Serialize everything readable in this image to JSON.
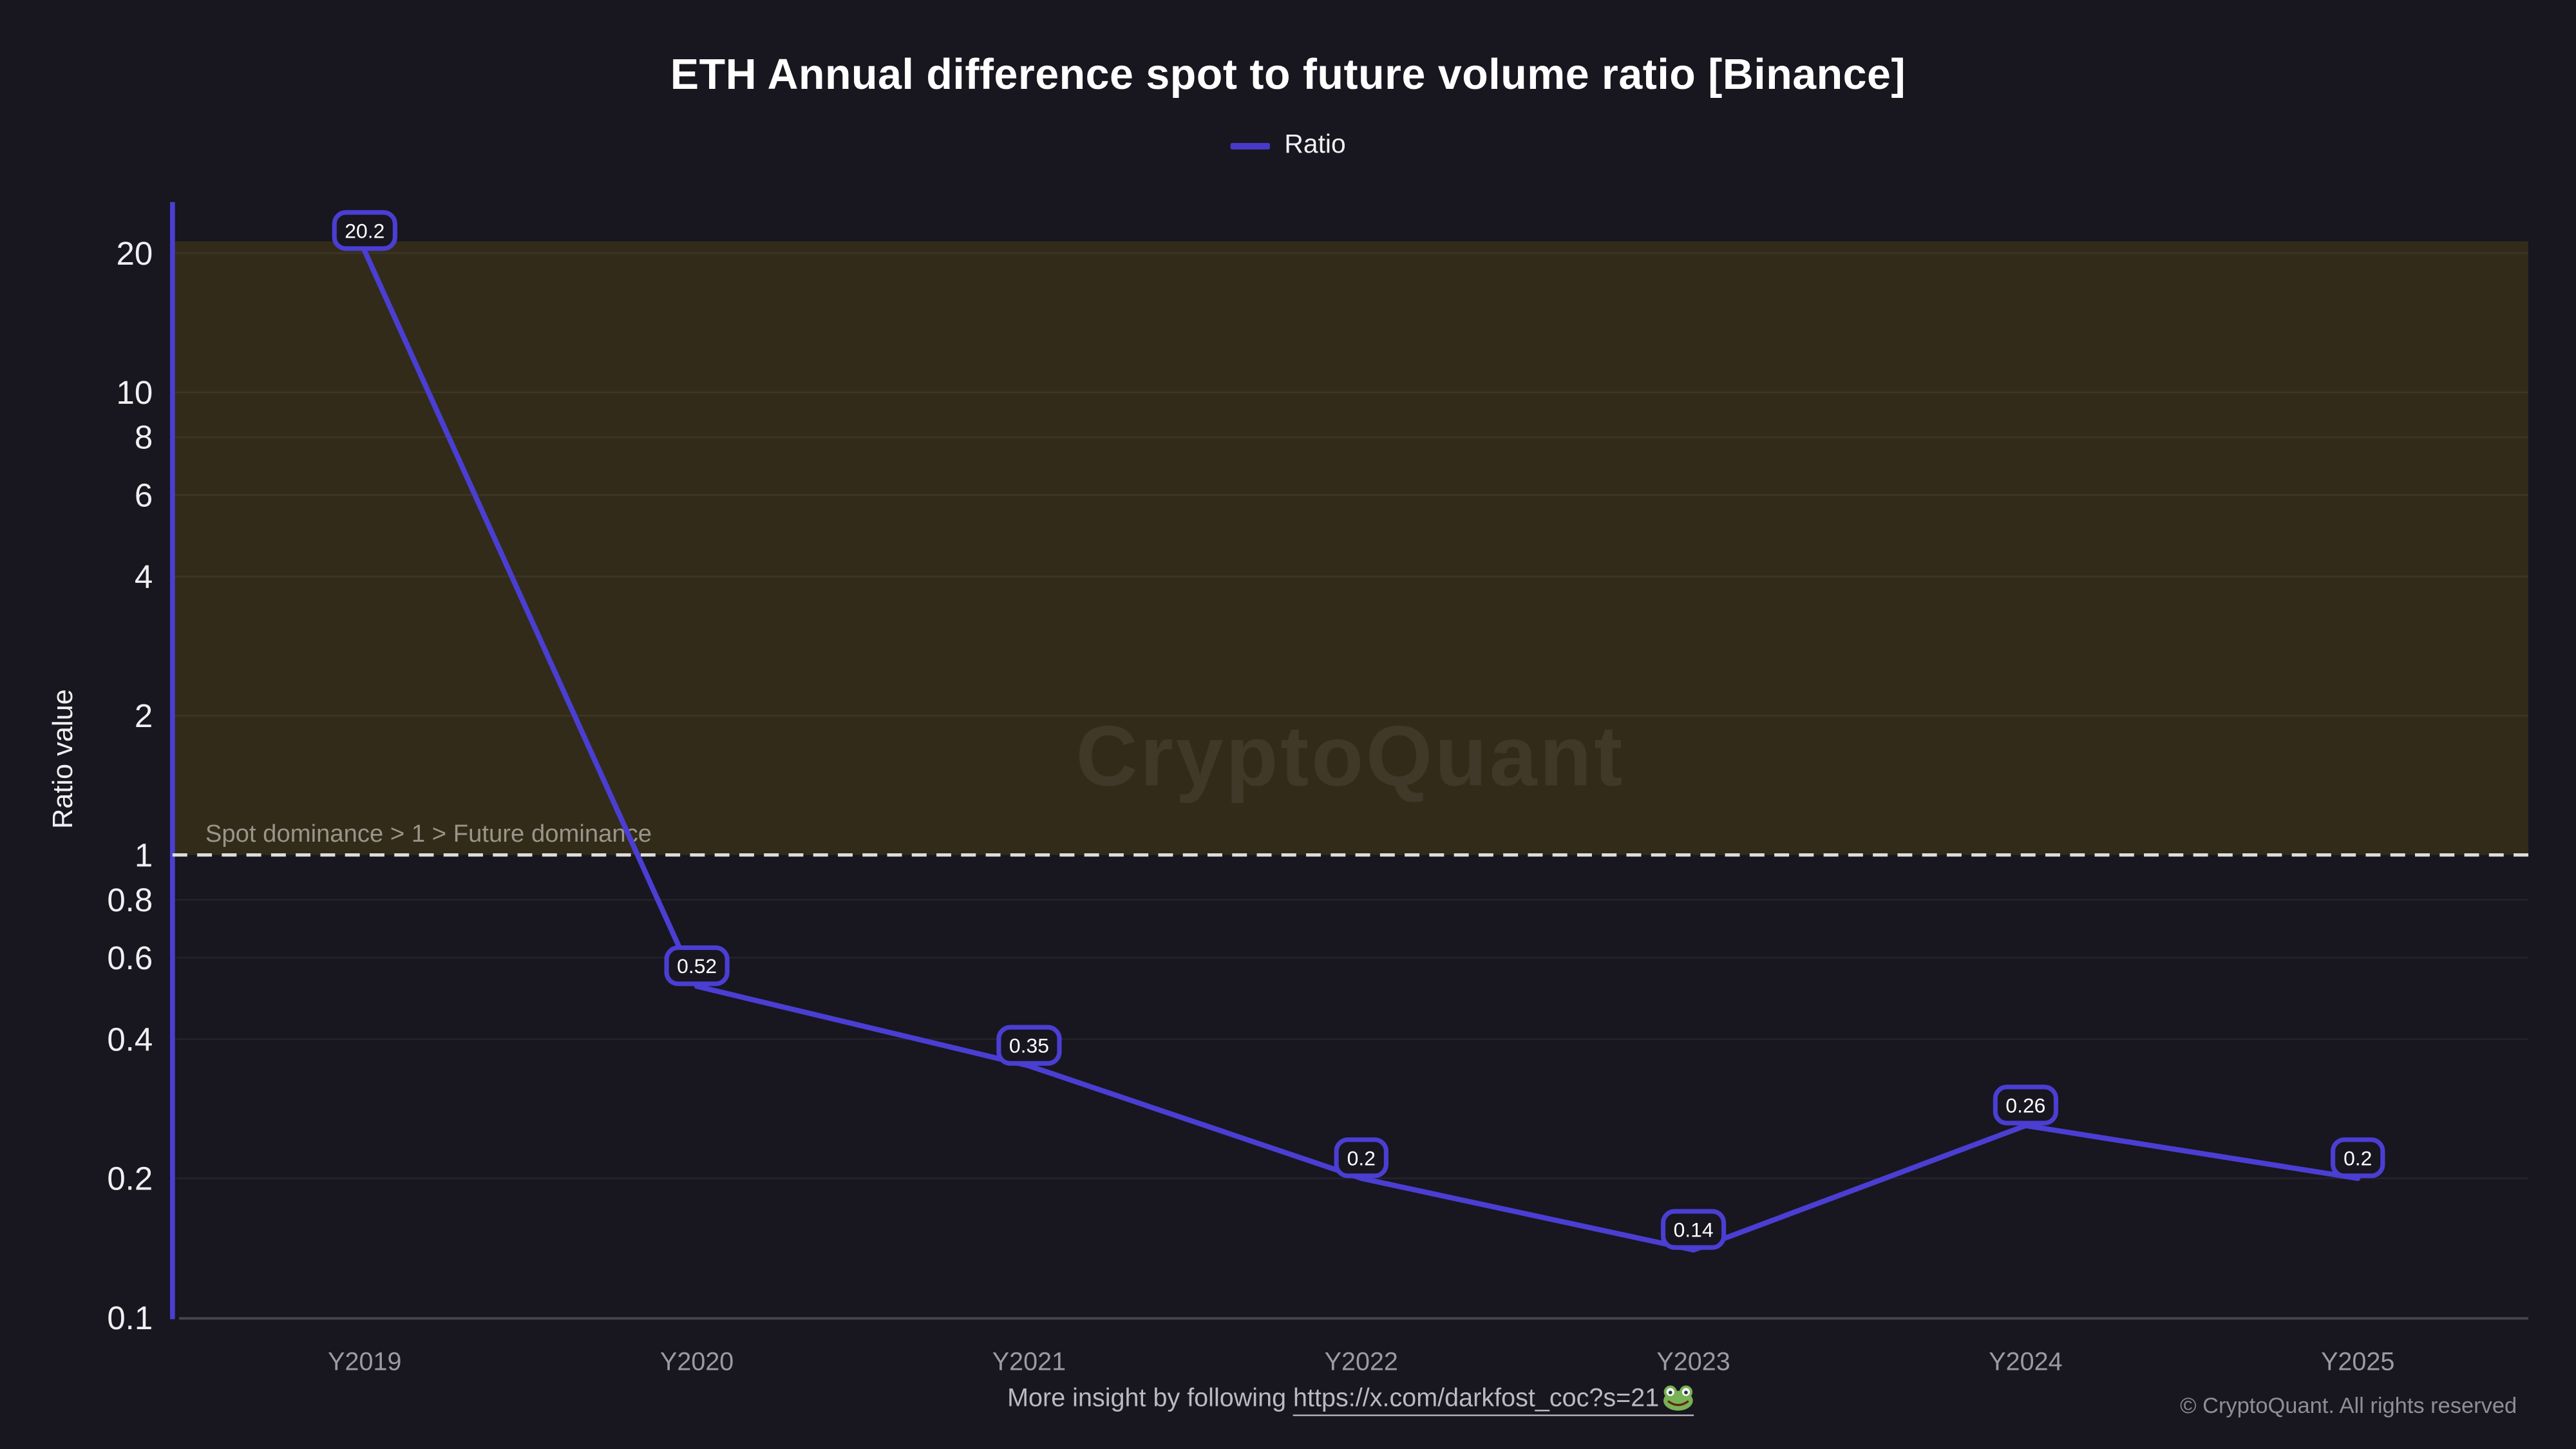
{
  "page": {
    "background": "#18161f"
  },
  "header": {
    "title": "ETH Annual difference spot to future volume ratio [Binance]",
    "legend": {
      "label": "Ratio",
      "swatch_color": "#473ac9"
    }
  },
  "chart_data": {
    "type": "line",
    "title": "ETH Annual difference spot to future volume ratio [Binance]",
    "xlabel": "",
    "ylabel": "Ratio value",
    "yscale": "log",
    "ylim": [
      0.1,
      25
    ],
    "grid": true,
    "legend_position": "top-center",
    "categories": [
      "Y2019",
      "Y2020",
      "Y2021",
      "Y2022",
      "Y2023",
      "Y2024",
      "Y2025"
    ],
    "series": [
      {
        "name": "Ratio",
        "color": "#4b3ed2",
        "values": [
          20.2,
          0.52,
          0.35,
          0.2,
          0.14,
          0.26,
          0.2
        ],
        "point_labels": [
          "20.2",
          "0.52",
          "0.35",
          "0.2",
          "0.14",
          "0.26",
          "0.2"
        ]
      }
    ],
    "yticks": [
      20,
      10,
      8,
      6,
      4,
      2,
      1,
      0.8,
      0.6,
      0.4,
      0.2,
      0.1
    ],
    "shaded_band": {
      "from": 1,
      "to": 21.2,
      "color": "#322b19"
    },
    "reference_line": {
      "value": 1,
      "style": "dashed",
      "color": "#dcdcdc",
      "label": "Spot dominance > 1 > Future dominance"
    }
  },
  "watermark": {
    "text": "CryptoQuant"
  },
  "footer": {
    "insight_prefix": "More insight by following ",
    "link_text": "https://x.com/darkfost_coc?s=21",
    "link_emoji": "🐸",
    "copyright": "© CryptoQuant. All rights reserved"
  }
}
